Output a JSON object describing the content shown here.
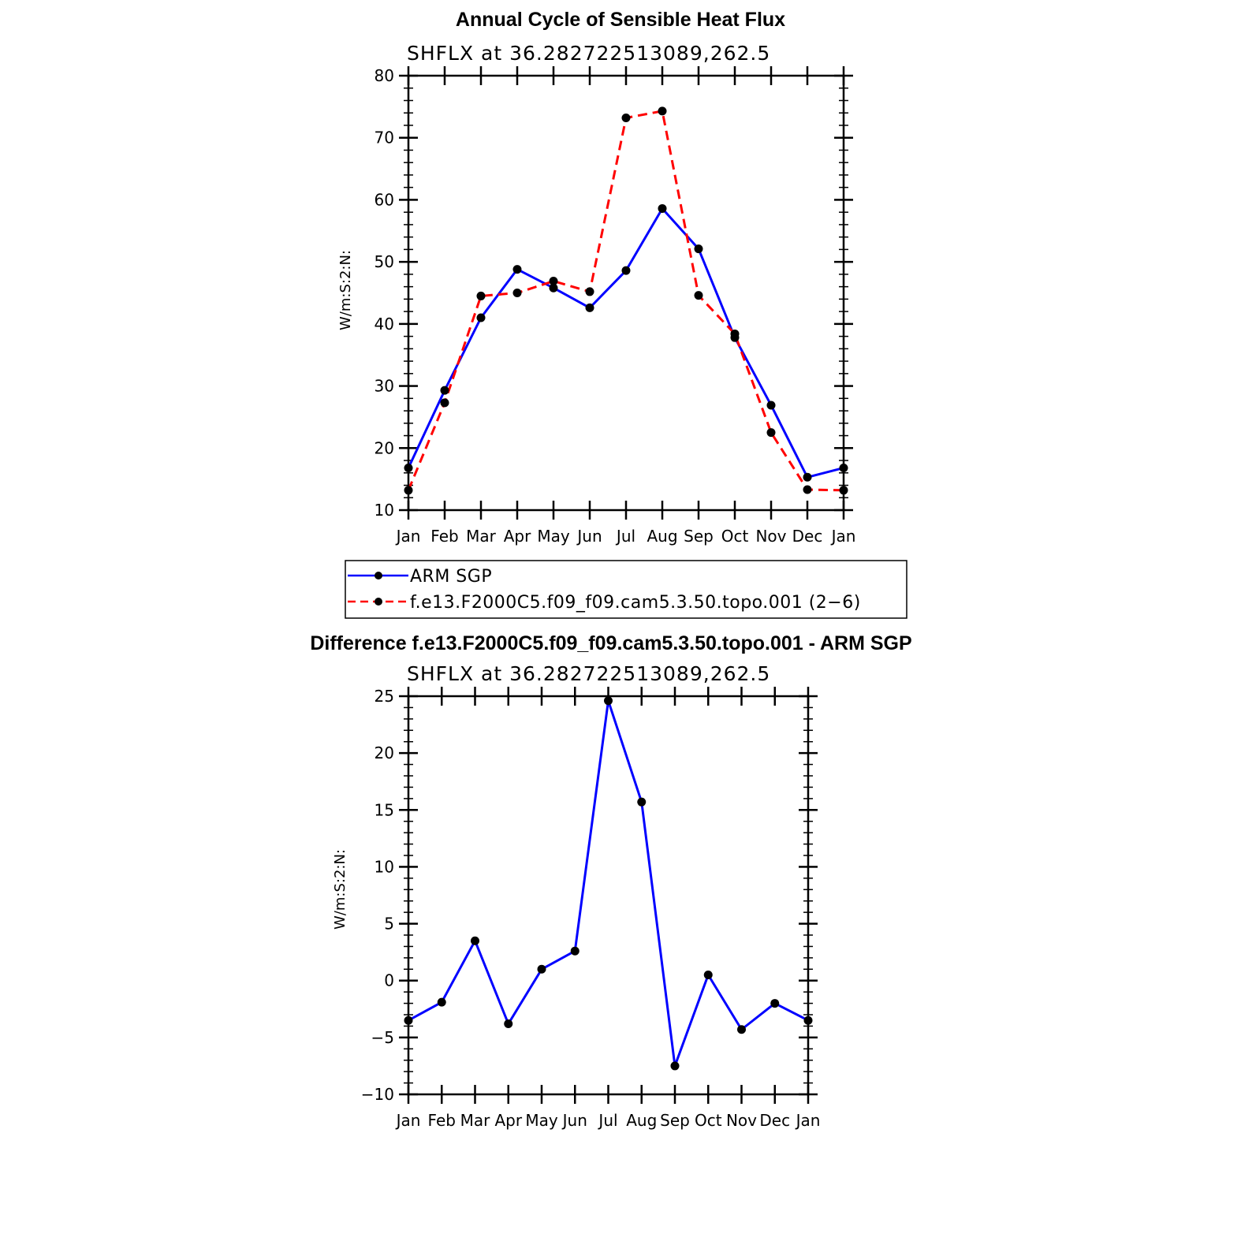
{
  "chart_data": [
    {
      "type": "line",
      "title": "Annual Cycle of Sensible Heat Flux",
      "subtitle": "SHFLX at 36.282722513089,262.5",
      "xlabel": "",
      "ylabel": "W/m:S:2:N:",
      "categories": [
        "Jan",
        "Feb",
        "Mar",
        "Apr",
        "May",
        "Jun",
        "Jul",
        "Aug",
        "Sep",
        "Oct",
        "Nov",
        "Dec",
        "Jan"
      ],
      "ylim": [
        10,
        80
      ],
      "yticks": [
        10,
        20,
        30,
        40,
        50,
        60,
        70,
        80
      ],
      "series": [
        {
          "name": "ARM SGP",
          "color": "#0000ff",
          "dashed": false,
          "values": [
            16.8,
            29.3,
            41.0,
            48.8,
            45.8,
            42.6,
            48.6,
            58.6,
            52.1,
            37.8,
            26.9,
            15.3,
            16.8
          ]
        },
        {
          "name": "f.e13.F2000C5.f09_f09.cam5.3.50.topo.001 (2−6)",
          "color": "#ff0000",
          "dashed": true,
          "values": [
            13.2,
            27.3,
            44.5,
            45.0,
            46.9,
            45.2,
            73.2,
            74.3,
            44.6,
            38.4,
            22.5,
            13.3,
            13.2
          ]
        }
      ],
      "legend": {
        "placement": "below",
        "entries": [
          "ARM SGP",
          "f.e13.F2000C5.f09_f09.cam5.3.50.topo.001 (2−6)"
        ]
      }
    },
    {
      "type": "line",
      "title": "Difference f.e13.F2000C5.f09_f09.cam5.3.50.topo.001 - ARM SGP",
      "subtitle": "SHFLX at 36.282722513089,262.5",
      "xlabel": "",
      "ylabel": "W/m:S:2:N:",
      "categories": [
        "Jan",
        "Feb",
        "Mar",
        "Apr",
        "May",
        "Jun",
        "Jul",
        "Aug",
        "Sep",
        "Oct",
        "Nov",
        "Dec",
        "Jan"
      ],
      "ylim": [
        -10,
        25
      ],
      "yticks": [
        -10,
        -5,
        0,
        5,
        10,
        15,
        20,
        25
      ],
      "ytick_labels": [
        "−10",
        "−5",
        "0",
        "5",
        "10",
        "15",
        "20",
        "25"
      ],
      "series": [
        {
          "name": "Difference",
          "color": "#0000ff",
          "dashed": false,
          "values": [
            -3.5,
            -1.9,
            3.5,
            -3.8,
            1.0,
            2.6,
            24.6,
            15.7,
            -7.5,
            0.5,
            -4.3,
            -2.0,
            -3.5
          ]
        }
      ]
    }
  ]
}
